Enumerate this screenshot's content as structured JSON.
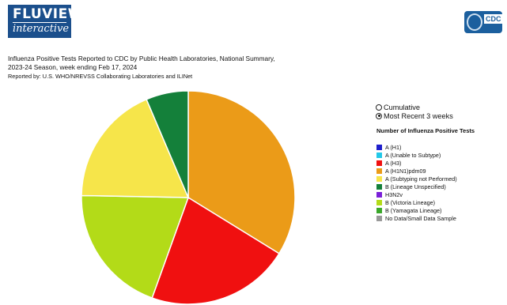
{
  "logo": {
    "line1": "FLUVIEW",
    "line2": "interactive"
  },
  "agency_logo": {
    "text": "CDC"
  },
  "report": {
    "title_line1": "Influenza Positive Tests Reported to CDC by Public Health Laboratories, National Summary,",
    "title_line2": "2023-24 Season, week ending Feb 17, 2024",
    "reported_by": "Reported by: U.S. WHO/NREVSS Collaborating Laboratories and ILINet"
  },
  "view_options": [
    {
      "label": "Cumulative",
      "selected": false
    },
    {
      "label": "Most Recent 3 weeks",
      "selected": true
    }
  ],
  "legend": {
    "title": "Number of Influenza Positive Tests",
    "items": [
      {
        "label": "A (H1)",
        "color": "#1f1fcc"
      },
      {
        "label": "A (Unable to Subtype)",
        "color": "#22c8e8"
      },
      {
        "label": "A (H3)",
        "color": "#f01010"
      },
      {
        "label": "A (H1N1)pdm09",
        "color": "#eb9b18"
      },
      {
        "label": "A (Subtyping not Performed)",
        "color": "#f6e54a"
      },
      {
        "label": "B (Lineage Unspecified)",
        "color": "#14803a"
      },
      {
        "label": "H3N2v",
        "color": "#7a1fd8"
      },
      {
        "label": "B (Victoria Lineage)",
        "color": "#b3db18"
      },
      {
        "label": "B (Yamagata Lineage)",
        "color": "#3aa82a"
      },
      {
        "label": "No Data/Small Data Sample",
        "color": "#999999"
      }
    ]
  },
  "chart_data": {
    "type": "pie",
    "slices": [
      {
        "category": "A (H1N1)pdm09",
        "percent": 33.8,
        "color": "#eb9b18"
      },
      {
        "category": "A (H3)",
        "percent": 21.7,
        "color": "#f01010"
      },
      {
        "category": "B (Victoria Lineage)",
        "percent": 19.8,
        "color": "#b3db18"
      },
      {
        "category": "A (Subtyping not Performed)",
        "percent": 18.3,
        "color": "#f6e54a"
      },
      {
        "category": "B (Lineage Unspecified)",
        "percent": 6.4,
        "color": "#14803a"
      }
    ]
  }
}
